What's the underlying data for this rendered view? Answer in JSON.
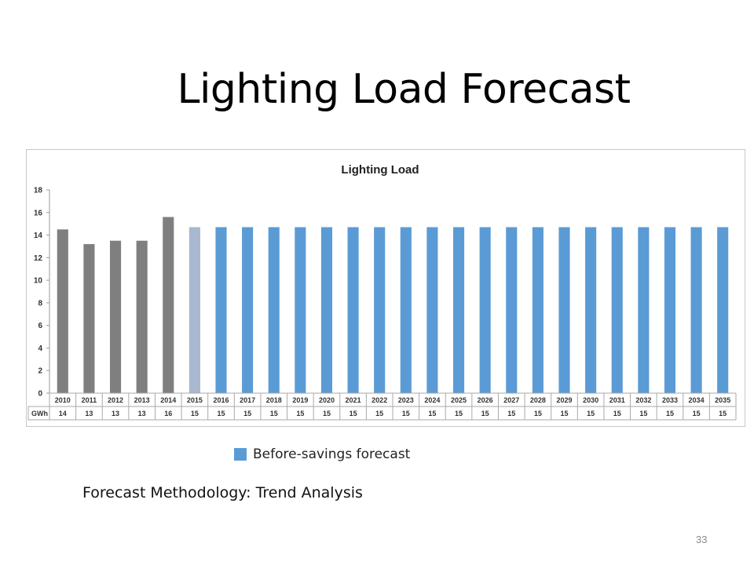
{
  "slide": {
    "title": "Lighting Load Forecast",
    "methodology": "Forecast Methodology: Trend Analysis",
    "page_number": "33"
  },
  "legend": {
    "label": "Before-savings  forecast",
    "color": "#5b9bd5"
  },
  "colors": {
    "actual": "#7f7f7f",
    "estimate": "#a9b7cf",
    "forecast": "#5b9bd5"
  },
  "chart_data": {
    "type": "bar",
    "title": "Lighting Load",
    "xlabel": "",
    "ylabel": "GWh",
    "ylim": [
      0,
      18
    ],
    "yticks": [
      0,
      2,
      4,
      6,
      8,
      10,
      12,
      14,
      16,
      18
    ],
    "grid": false,
    "categories": [
      "2010",
      "2011",
      "2012",
      "2013",
      "2014",
      "2015",
      "2016",
      "2017",
      "2018",
      "2019",
      "2020",
      "2021",
      "2022",
      "2023",
      "2024",
      "2025",
      "2026",
      "2027",
      "2028",
      "2029",
      "2030",
      "2031",
      "2032",
      "2033",
      "2034",
      "2035"
    ],
    "values": [
      14.5,
      13.2,
      13.5,
      13.5,
      15.6,
      14.7,
      14.7,
      14.7,
      14.7,
      14.7,
      14.7,
      14.7,
      14.7,
      14.7,
      14.7,
      14.7,
      14.7,
      14.7,
      14.7,
      14.7,
      14.7,
      14.7,
      14.7,
      14.7,
      14.7,
      14.7
    ],
    "bar_groups": [
      "actual",
      "actual",
      "actual",
      "actual",
      "actual",
      "estimate",
      "forecast",
      "forecast",
      "forecast",
      "forecast",
      "forecast",
      "forecast",
      "forecast",
      "forecast",
      "forecast",
      "forecast",
      "forecast",
      "forecast",
      "forecast",
      "forecast",
      "forecast",
      "forecast",
      "forecast",
      "forecast",
      "forecast",
      "forecast"
    ],
    "table": {
      "row_label": "GWh",
      "values": [
        "14",
        "13",
        "13",
        "13",
        "16",
        "15",
        "15",
        "15",
        "15",
        "15",
        "15",
        "15",
        "15",
        "15",
        "15",
        "15",
        "15",
        "15",
        "15",
        "15",
        "15",
        "15",
        "15",
        "15",
        "15",
        "15"
      ]
    }
  }
}
